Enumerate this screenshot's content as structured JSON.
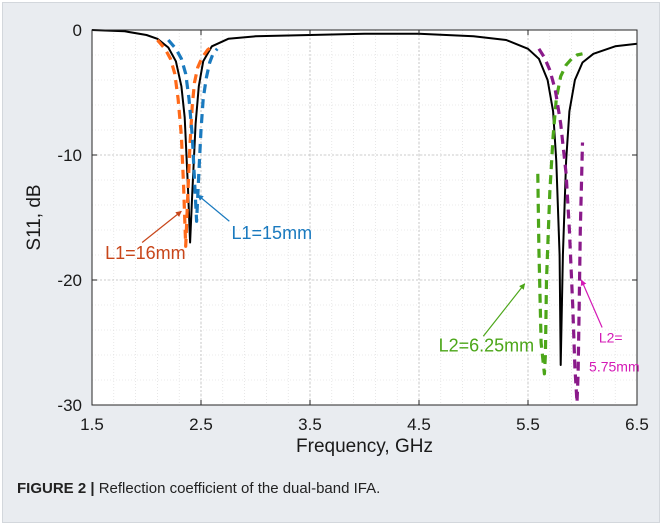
{
  "caption": {
    "label": "FIGURE 2 |",
    "text": " Reflection coefficient of the dual-band IFA."
  },
  "chart_data": {
    "type": "line",
    "xlabel": "Frequency, GHz",
    "ylabel": "S11, dB",
    "xlim": [
      1.5,
      6.5
    ],
    "ylim": [
      -30,
      0
    ],
    "xticks": [
      "1.5",
      "2.5",
      "3.5",
      "4.5",
      "5.5",
      "6.5"
    ],
    "xtick_values": [
      1.5,
      2.5,
      3.5,
      4.5,
      5.5,
      6.5
    ],
    "yticks": [
      "0",
      "-10",
      "-20",
      "-30"
    ],
    "ytick_values": [
      0,
      -10,
      -20,
      -30
    ],
    "grid": true,
    "minor_grid": true,
    "series": [
      {
        "color": "#000000",
        "style": "solid",
        "x": [
          1.5,
          1.8,
          2.0,
          2.1,
          2.2,
          2.27,
          2.32,
          2.35,
          2.38,
          2.4,
          2.42,
          2.45,
          2.48,
          2.52,
          2.6,
          2.75,
          3.0,
          3.5,
          4.0,
          4.5,
          5.0,
          5.3,
          5.5,
          5.6,
          5.68,
          5.73,
          5.76,
          5.79,
          5.8,
          5.82,
          5.85,
          5.88,
          5.93,
          6.0,
          6.1,
          6.3,
          6.5
        ],
        "y": [
          0,
          -0.1,
          -0.4,
          -0.7,
          -1.4,
          -2.5,
          -4.5,
          -7.0,
          -12.5,
          -17.0,
          -13.0,
          -7.5,
          -4.5,
          -2.5,
          -1.3,
          -0.7,
          -0.5,
          -0.4,
          -0.3,
          -0.3,
          -0.5,
          -0.8,
          -1.5,
          -2.3,
          -4.0,
          -6.5,
          -10.5,
          -18.0,
          -26.8,
          -18.0,
          -10.5,
          -6.5,
          -4.0,
          -2.6,
          -1.9,
          -1.3,
          -1.1
        ]
      },
      {
        "color": "#ff6a1a",
        "style": "dashed",
        "x": [
          2.1,
          2.17,
          2.22,
          2.26,
          2.29,
          2.32,
          2.34,
          2.36,
          2.38,
          2.4,
          2.42,
          2.44,
          2.47,
          2.51,
          2.56,
          2.6
        ],
        "y": [
          -0.8,
          -1.5,
          -2.3,
          -3.5,
          -5.5,
          -8.5,
          -12.5,
          -17.3,
          -13.0,
          -9.0,
          -6.0,
          -4.2,
          -3.0,
          -2.2,
          -1.6,
          -1.3
        ]
      },
      {
        "color": "#1a7abf",
        "style": "dashed",
        "x": [
          2.2,
          2.27,
          2.32,
          2.36,
          2.39,
          2.42,
          2.44,
          2.46,
          2.48,
          2.5,
          2.52,
          2.55,
          2.58,
          2.61,
          2.65
        ],
        "y": [
          -0.8,
          -1.5,
          -2.3,
          -3.5,
          -5.5,
          -8.5,
          -12.0,
          -15.3,
          -11.5,
          -8.0,
          -5.5,
          -3.8,
          -2.6,
          -1.9,
          -1.5
        ]
      },
      {
        "color": "#4ca619",
        "style": "dashed",
        "x": [
          5.59,
          5.6,
          5.62,
          5.65,
          5.66,
          5.67,
          5.7,
          5.73,
          5.76,
          5.8,
          5.85,
          5.9,
          5.95,
          6.0
        ],
        "y": [
          -11.5,
          -17.5,
          -25.0,
          -27.5,
          -26.0,
          -20.0,
          -13.0,
          -8.5,
          -5.5,
          -3.7,
          -2.8,
          -2.3,
          -2.0,
          -1.9
        ]
      },
      {
        "color": "#8a1a8a",
        "style": "dashed",
        "x": [
          5.6,
          5.65,
          5.7,
          5.75,
          5.8,
          5.85,
          5.88,
          5.91,
          5.93,
          5.95,
          5.96,
          5.97,
          5.98,
          6.0
        ],
        "y": [
          -1.5,
          -2.2,
          -3.2,
          -4.8,
          -7.5,
          -11.5,
          -16.0,
          -22.0,
          -27.0,
          -29.8,
          -27.5,
          -22.0,
          -16.0,
          -9.0
        ]
      }
    ],
    "annotations": [
      {
        "text": "L1=16mm",
        "color": "#c8461a",
        "font_size": 18,
        "x": 1.62,
        "y": -18.3,
        "arrow_from": [
          1.96,
          -17.0
        ],
        "arrow_to": [
          2.32,
          -14.5
        ]
      },
      {
        "text": "L1=15mm",
        "color": "#1a7abf",
        "font_size": 18,
        "x": 2.78,
        "y": -16.7,
        "arrow_from": [
          2.76,
          -15.3
        ],
        "arrow_to": [
          2.47,
          -13.2
        ]
      },
      {
        "text": "L2=6.25mm",
        "color": "#4ca619",
        "font_size": 18,
        "x": 4.68,
        "y": -25.7,
        "arrow_from": [
          5.09,
          -24.5
        ],
        "arrow_to": [
          5.47,
          -20.3
        ]
      },
      {
        "text": "L2=",
        "color": "#d41ab6",
        "font_size": 14,
        "x": 6.15,
        "y": -25.0,
        "arrow_from": [
          6.18,
          -23.8
        ],
        "arrow_to": [
          5.99,
          -20.0
        ]
      },
      {
        "text": "5.75mm",
        "color": "#d41ab6",
        "font_size": 14,
        "x": 6.06,
        "y": -27.3
      }
    ]
  }
}
